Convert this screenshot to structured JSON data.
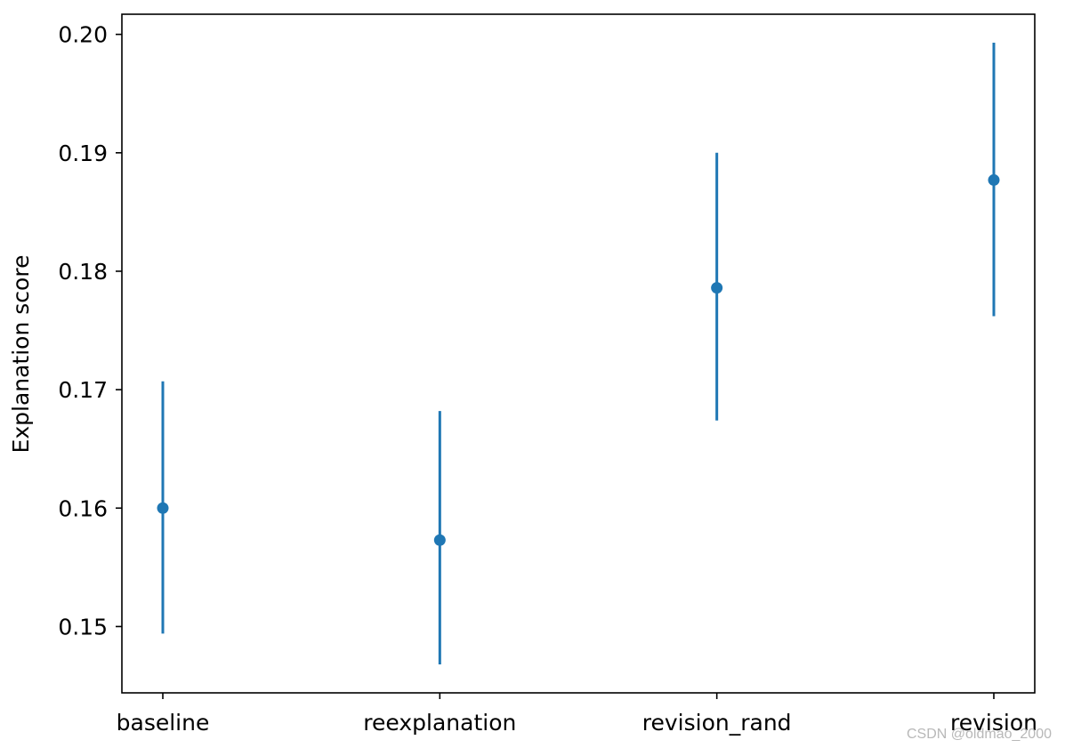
{
  "chart_data": {
    "type": "scatter",
    "categories": [
      "baseline",
      "reexplanation",
      "revision_rand",
      "revision"
    ],
    "series": [
      {
        "values": [
          0.16,
          0.1573,
          0.1786,
          0.1877
        ],
        "err_lower": [
          0.1494,
          0.1468,
          0.1674,
          0.1762
        ],
        "err_upper": [
          0.1707,
          0.1682,
          0.19,
          0.1993
        ],
        "color": "#1f77b4"
      }
    ],
    "ylabel": "Explanation score",
    "xlabel": "",
    "title": "",
    "ylim": [
      0.1444,
      0.2017
    ],
    "yticks": [
      0.15,
      0.16,
      0.17,
      0.18,
      0.19,
      0.2
    ],
    "ytick_labels": [
      "0.15",
      "0.16",
      "0.17",
      "0.18",
      "0.19",
      "0.20"
    ],
    "grid": false,
    "legend": "none"
  },
  "watermark": "CSDN @oldmao_2000"
}
